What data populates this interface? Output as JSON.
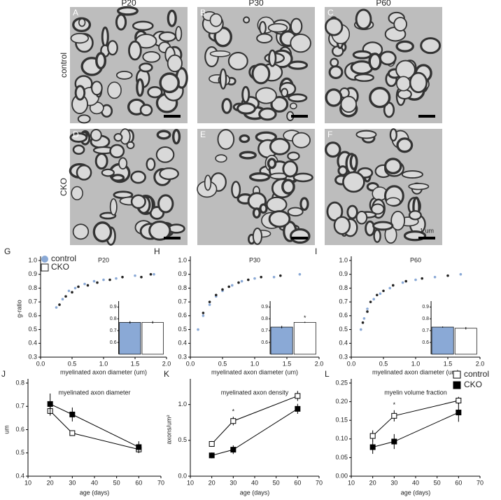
{
  "micrographs": {
    "columns": [
      "P20",
      "P30",
      "P60"
    ],
    "rows": [
      "control",
      "CKO"
    ],
    "panels": [
      "A",
      "B",
      "C",
      "D",
      "E",
      "F"
    ],
    "scale_bar": "1 um"
  },
  "chart_data": [
    {
      "type": "scatter",
      "panel": "G",
      "title": "P20",
      "xlabel": "myelinated axon diameter (um)",
      "ylabel": "g-ratio",
      "legend": "top-left",
      "xlim": [
        0,
        2
      ],
      "xticks": [
        {
          "value": 0,
          "label": "0.0"
        },
        0.5,
        {
          "value": 1,
          "label": "1.0"
        },
        1.5,
        {
          "value": 2,
          "label": "2.0"
        }
      ],
      "ylim": [
        0.3,
        1.0
      ],
      "yticks": [
        0.3,
        0.4,
        0.5,
        0.6,
        0.7,
        0.8,
        0.9,
        {
          "value": 1,
          "label": "1.0"
        }
      ],
      "series": [
        {
          "name": "control",
          "color": "#8aa9d6",
          "legend_marker": "circle",
          "x": [
            0.25,
            0.35,
            0.45,
            0.55,
            0.7,
            0.85,
            1.0,
            1.2,
            1.5,
            1.8
          ],
          "y": [
            0.66,
            0.72,
            0.78,
            0.8,
            0.83,
            0.85,
            0.86,
            0.87,
            0.89,
            0.9
          ]
        },
        {
          "name": "CKO",
          "color": "#222222",
          "legend_marker": "open-square",
          "x": [
            0.3,
            0.4,
            0.5,
            0.6,
            0.75,
            0.9,
            1.1,
            1.3,
            1.6,
            1.75
          ],
          "y": [
            0.68,
            0.74,
            0.77,
            0.81,
            0.82,
            0.84,
            0.86,
            0.88,
            0.88,
            0.9
          ]
        }
      ],
      "inset": {
        "values": [
          0.77,
          0.77
        ],
        "errors": [
          0.01,
          0.01
        ],
        "colors": [
          "#8aa9d6",
          "#ffffff"
        ],
        "ylim": [
          0.5,
          0.95
        ],
        "yticks": [
          0.6,
          0.7,
          0.8,
          0.9
        ]
      }
    },
    {
      "type": "scatter",
      "panel": "H",
      "title": "P30",
      "xlabel": "myelinated axon diameter (um)",
      "xlim": [
        0,
        2
      ],
      "xticks": [
        {
          "value": 0,
          "label": "0.0"
        },
        0.5,
        {
          "value": 1,
          "label": "1.0"
        },
        1.5,
        {
          "value": 2,
          "label": "2.0"
        }
      ],
      "ylim": [
        0.3,
        1.0
      ],
      "yticks": [
        0.3,
        0.4,
        0.5,
        0.6,
        0.7,
        0.8,
        0.9,
        {
          "value": 1,
          "label": "1.0"
        }
      ],
      "series": [
        {
          "color": "#8aa9d6",
          "x": [
            0.12,
            0.2,
            0.3,
            0.4,
            0.5,
            0.65,
            0.8,
            1.0,
            1.3,
            1.7
          ],
          "y": [
            0.5,
            0.6,
            0.68,
            0.74,
            0.78,
            0.82,
            0.85,
            0.87,
            0.88,
            0.9
          ]
        },
        {
          "color": "#222222",
          "x": [
            0.2,
            0.3,
            0.4,
            0.5,
            0.6,
            0.75,
            0.9,
            1.1,
            1.4
          ],
          "y": [
            0.62,
            0.7,
            0.75,
            0.79,
            0.81,
            0.84,
            0.86,
            0.88,
            0.89
          ]
        }
      ],
      "inset": {
        "values": [
          0.73,
          0.77
        ],
        "errors": [
          0.01,
          0.005
        ],
        "colors": [
          "#8aa9d6",
          "#ffffff"
        ],
        "ylim": [
          0.5,
          0.95
        ],
        "yticks": [
          0.6,
          0.7,
          0.8,
          0.9
        ],
        "annotation": "*"
      }
    },
    {
      "type": "scatter",
      "panel": "I",
      "title": "P60",
      "xlabel": "myelinated axon diameter (um)",
      "xlim": [
        0,
        2
      ],
      "xticks": [
        {
          "value": 0,
          "label": "0.0"
        },
        0.5,
        {
          "value": 1,
          "label": "1.0"
        },
        1.5,
        {
          "value": 2,
          "label": "2.0"
        }
      ],
      "ylim": [
        0.3,
        1.0
      ],
      "yticks": [
        0.3,
        0.4,
        0.5,
        0.6,
        0.7,
        0.8,
        0.9,
        {
          "value": 1,
          "label": "1.0"
        }
      ],
      "series": [
        {
          "color": "#8aa9d6",
          "x": [
            0.15,
            0.2,
            0.25,
            0.35,
            0.45,
            0.6,
            0.8,
            1.0,
            1.3,
            1.7
          ],
          "y": [
            0.5,
            0.58,
            0.65,
            0.72,
            0.76,
            0.8,
            0.84,
            0.86,
            0.88,
            0.9
          ]
        },
        {
          "color": "#222222",
          "x": [
            0.18,
            0.25,
            0.3,
            0.4,
            0.5,
            0.65,
            0.85,
            1.1,
            1.5
          ],
          "y": [
            0.55,
            0.63,
            0.7,
            0.75,
            0.78,
            0.82,
            0.85,
            0.87,
            0.89
          ]
        }
      ],
      "inset": {
        "values": [
          0.73,
          0.72
        ],
        "errors": [
          0.005,
          0.01
        ],
        "colors": [
          "#8aa9d6",
          "#ffffff"
        ],
        "ylim": [
          0.5,
          0.95
        ],
        "yticks": [
          0.6,
          0.7,
          0.8,
          0.9
        ]
      }
    },
    {
      "type": "line",
      "panel": "J",
      "title": "myelinated axon diameter",
      "xlabel": "age (days)",
      "ylabel": "um",
      "x": [
        20,
        30,
        60
      ],
      "xlim": [
        10,
        70
      ],
      "xticks": [
        10,
        20,
        30,
        40,
        50,
        60,
        70
      ],
      "ylim": [
        0.4,
        0.8
      ],
      "yticks": [
        0.4,
        0.5,
        0.6,
        0.7,
        0.8
      ],
      "series": [
        {
          "color": "#000000",
          "marker": "open",
          "values": [
            0.68,
            0.585,
            0.515
          ],
          "errors": [
            0.02,
            0.005,
            0.015
          ]
        },
        {
          "color": "#000000",
          "marker": "filled",
          "values": [
            0.71,
            0.665,
            0.525
          ],
          "errors": [
            0.045,
            0.03,
            0.025
          ]
        }
      ]
    },
    {
      "type": "line",
      "panel": "K",
      "title": "myelinated axon density",
      "xlabel": "age (days)",
      "ylabel": "axons/um²",
      "x": [
        20,
        30,
        60
      ],
      "xlim": [
        10,
        70
      ],
      "xticks": [
        10,
        20,
        30,
        40,
        50,
        60,
        70
      ],
      "ylim": [
        0,
        1.3
      ],
      "yticks": [
        {
          "value": 0,
          "label": "0.0"
        },
        0.5,
        {
          "value": 1,
          "label": "1.0"
        }
      ],
      "series": [
        {
          "color": "#000000",
          "marker": "open",
          "values": [
            0.45,
            0.77,
            1.12
          ],
          "errors": [
            0.04,
            0.06,
            0.07
          ]
        },
        {
          "color": "#000000",
          "marker": "filled",
          "values": [
            0.29,
            0.37,
            0.94
          ],
          "errors": [
            0.04,
            0.06,
            0.07
          ]
        }
      ],
      "annotations": [
        {
          "text": "*",
          "x": 30
        }
      ]
    },
    {
      "type": "line",
      "panel": "L",
      "title": "myelin volume fraction",
      "xlabel": "age (days)",
      "legend": "top-right",
      "x": [
        20,
        30,
        60
      ],
      "xlim": [
        10,
        70
      ],
      "xticks": [
        10,
        20,
        30,
        40,
        50,
        60,
        70
      ],
      "ylim": [
        0,
        0.25
      ],
      "yticks": [
        {
          "value": 0,
          "label": "0.00"
        },
        {
          "value": 0.05,
          "label": "0.05"
        },
        {
          "value": 0.1,
          "label": "0.10"
        },
        {
          "value": 0.15,
          "label": "0.15"
        },
        {
          "value": 0.2,
          "label": "0.20"
        },
        {
          "value": 0.25,
          "label": "0.25"
        }
      ],
      "series": [
        {
          "name": "control",
          "color": "#000000",
          "marker": "open",
          "values": [
            0.108,
            0.162,
            0.203
          ],
          "errors": [
            0.015,
            0.015,
            0.01
          ]
        },
        {
          "name": "CKO",
          "color": "#000000",
          "marker": "filled",
          "values": [
            0.078,
            0.093,
            0.171
          ],
          "errors": [
            0.018,
            0.02,
            0.025
          ]
        }
      ],
      "annotations": [
        {
          "text": "*",
          "x": 30
        }
      ]
    }
  ]
}
